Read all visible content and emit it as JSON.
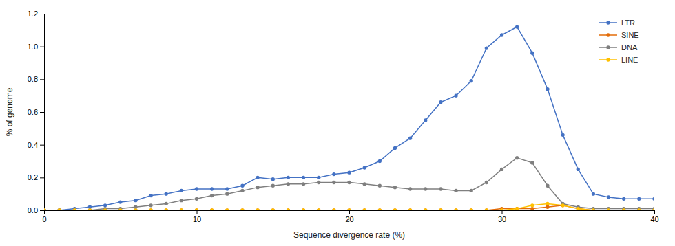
{
  "chart_data": {
    "type": "line",
    "xlabel": "Sequence divergence rate (%)",
    "ylabel": "% of genome",
    "x": [
      0,
      1,
      2,
      3,
      4,
      5,
      6,
      7,
      8,
      9,
      10,
      11,
      12,
      13,
      14,
      15,
      16,
      17,
      18,
      19,
      20,
      21,
      22,
      23,
      24,
      25,
      26,
      27,
      28,
      29,
      30,
      31,
      32,
      33,
      34,
      35,
      36,
      37,
      38,
      39,
      40
    ],
    "series": [
      {
        "name": "LTR",
        "color": "#4472c4",
        "values": [
          0.0,
          0.0,
          0.01,
          0.02,
          0.03,
          0.05,
          0.06,
          0.09,
          0.1,
          0.12,
          0.13,
          0.13,
          0.13,
          0.15,
          0.2,
          0.19,
          0.2,
          0.2,
          0.2,
          0.22,
          0.23,
          0.26,
          0.3,
          0.38,
          0.44,
          0.55,
          0.66,
          0.7,
          0.79,
          0.99,
          1.07,
          1.12,
          0.96,
          0.74,
          0.46,
          0.25,
          0.1,
          0.08,
          0.07,
          0.07,
          0.07
        ]
      },
      {
        "name": "SINE",
        "color": "#e36c09",
        "values": [
          0.0,
          0.0,
          0.0,
          0.0,
          0.0,
          0.0,
          0.0,
          0.0,
          0.0,
          0.0,
          0.0,
          0.0,
          0.0,
          0.0,
          0.0,
          0.0,
          0.0,
          0.0,
          0.0,
          0.0,
          0.0,
          0.0,
          0.0,
          0.0,
          0.0,
          0.0,
          0.0,
          0.0,
          0.0,
          0.0,
          0.01,
          0.01,
          0.01,
          0.02,
          0.03,
          0.01,
          0.0,
          0.0,
          0.0,
          0.0,
          0.0
        ]
      },
      {
        "name": "DNA",
        "color": "#7f7f7f",
        "values": [
          0.0,
          0.0,
          0.0,
          0.0,
          0.01,
          0.01,
          0.02,
          0.03,
          0.04,
          0.06,
          0.07,
          0.09,
          0.1,
          0.12,
          0.14,
          0.15,
          0.16,
          0.16,
          0.17,
          0.17,
          0.17,
          0.16,
          0.15,
          0.14,
          0.13,
          0.13,
          0.13,
          0.12,
          0.12,
          0.17,
          0.25,
          0.32,
          0.29,
          0.15,
          0.04,
          0.02,
          0.01,
          0.01,
          0.01,
          0.01,
          0.01
        ]
      },
      {
        "name": "LINE",
        "color": "#ffc000",
        "values": [
          0.0,
          0.0,
          0.0,
          0.0,
          0.0,
          0.0,
          0.0,
          0.0,
          0.0,
          0.0,
          0.0,
          0.0,
          0.0,
          0.0,
          0.0,
          0.0,
          0.0,
          0.0,
          0.0,
          0.0,
          0.0,
          0.0,
          0.0,
          0.0,
          0.0,
          0.0,
          0.0,
          0.0,
          0.0,
          0.0,
          0.0,
          0.01,
          0.03,
          0.04,
          0.03,
          0.01,
          0.0,
          0.0,
          0.0,
          0.0,
          0.0
        ]
      }
    ],
    "xlim": [
      0,
      40
    ],
    "ylim": [
      0,
      1.2
    ],
    "xticks": [
      0,
      10,
      20,
      30,
      40
    ],
    "yticks": [
      {
        "value": 0,
        "label": "0.0"
      },
      0.2,
      0.4,
      0.6,
      0.8,
      {
        "value": 1.0,
        "label": "1.0"
      },
      1.2
    ],
    "marker": "circle",
    "grid": false,
    "legend": "upper right"
  }
}
